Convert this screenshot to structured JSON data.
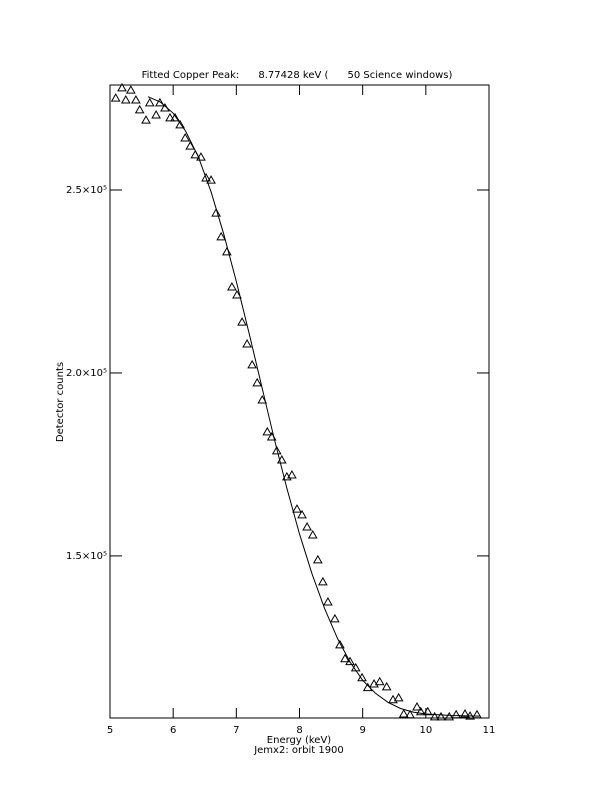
{
  "chart_data": {
    "type": "scatter",
    "title": "Fitted Copper Peak:      8.77428 keV (      50 Science windows)",
    "x_label": "Energy (keV)",
    "subtitle": "Jemx2: orbit 1900",
    "y_label": "Detector counts",
    "xlim": [
      5,
      11
    ],
    "xticks": [
      5,
      6,
      7,
      8,
      9,
      10,
      11
    ],
    "ylim": [
      105700,
      278700
    ],
    "yticks": [
      {
        "value": 150000,
        "label": "1.5×10⁵"
      },
      {
        "value": 200000,
        "label": "2.0×10⁵"
      },
      {
        "value": 250000,
        "label": "2.5×10⁵"
      }
    ],
    "series": [
      {
        "style": "markers",
        "color": "#000000",
        "x": [
          5.09,
          5.19,
          5.25,
          5.33,
          5.41,
          5.47,
          5.57,
          5.63,
          5.73,
          5.79,
          5.87,
          5.95,
          6.03,
          6.11,
          6.19,
          6.27,
          6.35,
          6.44,
          6.52,
          6.6,
          6.68,
          6.76,
          6.85,
          6.93,
          7.01,
          7.09,
          7.17,
          7.25,
          7.33,
          7.41,
          7.49,
          7.56,
          7.64,
          7.72,
          7.8,
          7.88,
          7.96,
          8.04,
          8.12,
          8.21,
          8.29,
          8.37,
          8.45,
          8.56,
          8.64,
          8.72,
          8.8,
          8.89,
          8.99,
          9.08,
          9.18,
          9.27,
          9.38,
          9.48,
          9.57,
          9.65,
          9.75,
          9.86,
          9.92,
          10.03,
          10.14,
          10.24,
          10.37,
          10.48,
          10.62,
          10.7,
          10.81
        ],
        "values": [
          275100,
          277900,
          274600,
          277300,
          274600,
          271900,
          269100,
          273800,
          270500,
          273800,
          272400,
          269700,
          269700,
          267800,
          264200,
          262000,
          259600,
          259000,
          253300,
          252700,
          243700,
          237200,
          233100,
          223500,
          221300,
          213900,
          207900,
          202200,
          197300,
          192600,
          183900,
          182500,
          178700,
          176200,
          171600,
          172100,
          162800,
          161200,
          157900,
          155700,
          148900,
          142900,
          137400,
          132800,
          125700,
          121900,
          121100,
          119400,
          116700,
          114000,
          115000,
          115600,
          114200,
          110700,
          111200,
          106800,
          106600,
          108700,
          107400,
          107400,
          106000,
          106000,
          106000,
          106600,
          106800,
          106200,
          106600
        ]
      },
      {
        "style": "line",
        "color": "#000000",
        "x": [
          5.6,
          5.8,
          6.0,
          6.2,
          6.4,
          6.6,
          6.8,
          7.0,
          7.2,
          7.4,
          7.6,
          7.8,
          8.0,
          8.2,
          8.4,
          8.6,
          8.8,
          9.0,
          9.2,
          9.4,
          9.6,
          9.8,
          10.0,
          10.4,
          10.85
        ],
        "values": [
          275500,
          274000,
          271000,
          266000,
          259000,
          249500,
          238000,
          225000,
          211000,
          196500,
          182000,
          168500,
          156000,
          145000,
          135500,
          127500,
          121000,
          116000,
          112500,
          110000,
          108300,
          107300,
          106800,
          106400,
          106200
        ]
      }
    ]
  }
}
